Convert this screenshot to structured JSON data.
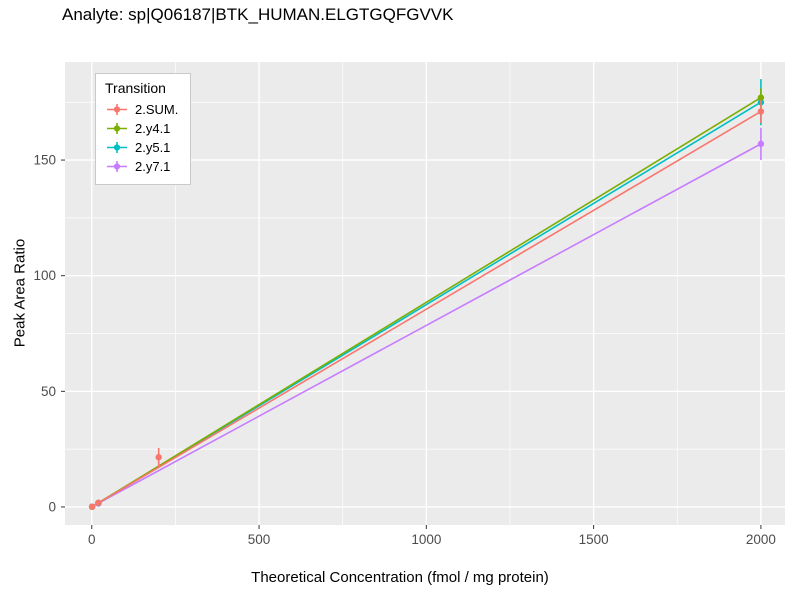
{
  "chart_data": {
    "type": "line",
    "title": "Analyte: sp|Q06187|BTK_HUMAN.ELGTGQFGVVK",
    "xlabel": "Theoretical Concentration (fmol / mg protein)",
    "ylabel": "Peak Area Ratio",
    "legend_title": "Transition",
    "legend_position": "top-left-inside",
    "grid": true,
    "panel_color": "#EBEBEB",
    "grid_color": "#FFFFFF",
    "tick_label_color": "#4D4D4D",
    "x_ticks": [
      0,
      500,
      1000,
      1500,
      2000
    ],
    "y_ticks": [
      0,
      50,
      100,
      150
    ],
    "xlim": [
      -80,
      2072
    ],
    "ylim": [
      -7.8,
      192.4
    ],
    "series": [
      {
        "name": "2.SUM.",
        "color": "#F8766D",
        "line": {
          "x1": 1,
          "y1": 0.1,
          "x2": 2000,
          "y2": 171
        },
        "points": [
          {
            "x": 1,
            "y": 0.1,
            "err": 0.3
          },
          {
            "x": 20,
            "y": 1.8,
            "err": 0.4
          },
          {
            "x": 200,
            "y": 21.5,
            "err": 4
          },
          {
            "x": 2000,
            "y": 171,
            "err": 5
          }
        ]
      },
      {
        "name": "2.y4.1",
        "color": "#7CAE00",
        "line": {
          "x1": 1,
          "y1": 0.1,
          "x2": 2000,
          "y2": 177
        },
        "points": [
          {
            "x": 1,
            "y": 0.1,
            "err": 0.2
          },
          {
            "x": 20,
            "y": 1.8,
            "err": 0.3
          },
          {
            "x": 2000,
            "y": 177,
            "err": 4
          }
        ]
      },
      {
        "name": "2.y5.1",
        "color": "#00BFC4",
        "line": {
          "x1": 1,
          "y1": 0.1,
          "x2": 2000,
          "y2": 175
        },
        "points": [
          {
            "x": 1,
            "y": 0.1,
            "err": 0.2
          },
          {
            "x": 20,
            "y": 1.7,
            "err": 0.3
          },
          {
            "x": 2000,
            "y": 175,
            "err": 10
          }
        ]
      },
      {
        "name": "2.y7.1",
        "color": "#C77CFF",
        "line": {
          "x1": 1,
          "y1": 0.1,
          "x2": 2000,
          "y2": 157
        },
        "points": [
          {
            "x": 1,
            "y": 0.1,
            "err": 0.2
          },
          {
            "x": 20,
            "y": 1.5,
            "err": 0.3
          },
          {
            "x": 2000,
            "y": 157,
            "err": 7
          }
        ]
      }
    ]
  }
}
